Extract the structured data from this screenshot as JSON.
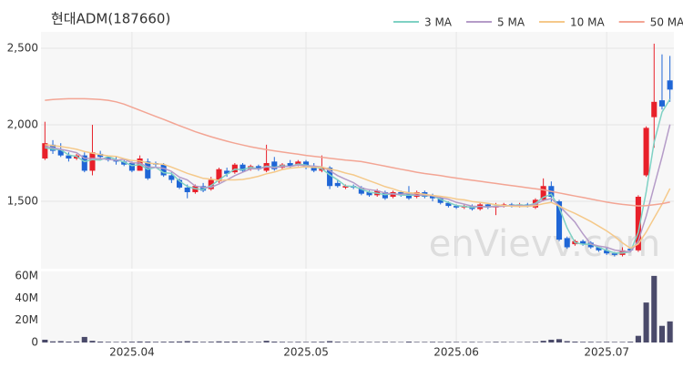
{
  "chart_data": {
    "type": "candlestick",
    "title": "현대ADM(187660)",
    "watermark": "enVievv.com",
    "categories": [
      null,
      null,
      null,
      null,
      null,
      null,
      null,
      null,
      null,
      null,
      null,
      "2025.04",
      null,
      null,
      null,
      null,
      null,
      null,
      null,
      null,
      null,
      null,
      null,
      null,
      null,
      null,
      null,
      null,
      null,
      null,
      null,
      null,
      null,
      "2025.05",
      null,
      null,
      null,
      null,
      null,
      null,
      null,
      null,
      null,
      null,
      null,
      null,
      null,
      null,
      null,
      null,
      null,
      null,
      "2025.06",
      null,
      null,
      null,
      null,
      null,
      null,
      null,
      null,
      null,
      null,
      null,
      null,
      null,
      null,
      null,
      null,
      null,
      null,
      "2025.07",
      null,
      null,
      null,
      null,
      null,
      null,
      null,
      null
    ],
    "open": [
      1780,
      1870,
      1840,
      1800,
      1780,
      1800,
      1700,
      1810,
      1790,
      1770,
      1760,
      1750,
      1700,
      1760,
      1750,
      1740,
      1670,
      1640,
      1590,
      1560,
      1600,
      1580,
      1630,
      1700,
      1690,
      1740,
      1710,
      1730,
      1700,
      1760,
      1720,
      1750,
      1740,
      1760,
      1730,
      1700,
      1720,
      1620,
      1590,
      1600,
      1590,
      1560,
      1540,
      1560,
      1530,
      1560,
      1560,
      1530,
      1560,
      1540,
      1520,
      1490,
      1470,
      1460,
      1470,
      1450,
      1480,
      1460,
      1470,
      1480,
      1470,
      1480,
      1460,
      1510,
      1600,
      1500,
      1260,
      1220,
      1240,
      1230,
      1200,
      1180,
      1160,
      1150,
      1190,
      1180,
      1670,
      2050,
      2160,
      2290
    ],
    "high": [
      2020,
      1900,
      1880,
      1820,
      1810,
      1820,
      2000,
      1830,
      1800,
      1790,
      1770,
      1760,
      1800,
      1780,
      1760,
      1750,
      1690,
      1650,
      1610,
      1610,
      1620,
      1660,
      1720,
      1720,
      1750,
      1750,
      1740,
      1740,
      1870,
      1790,
      1750,
      1770,
      1770,
      1770,
      1750,
      1800,
      1730,
      1640,
      1610,
      1610,
      1600,
      1570,
      1580,
      1570,
      1570,
      1570,
      1600,
      1570,
      1570,
      1550,
      1530,
      1500,
      1480,
      1480,
      1480,
      1490,
      1490,
      1490,
      1490,
      1490,
      1490,
      1490,
      1520,
      1650,
      1630,
      1510,
      1270,
      1250,
      1250,
      1240,
      1210,
      1200,
      1170,
      1200,
      1200,
      1540,
      1990,
      2530,
      2460,
      2450
    ],
    "low": [
      1770,
      1810,
      1790,
      1760,
      1770,
      1690,
      1670,
      1770,
      1760,
      1740,
      1730,
      1690,
      1700,
      1640,
      1720,
      1660,
      1620,
      1580,
      1520,
      1550,
      1560,
      1570,
      1620,
      1660,
      1680,
      1690,
      1700,
      1700,
      1690,
      1700,
      1710,
      1720,
      1730,
      1710,
      1690,
      1690,
      1580,
      1590,
      1580,
      1580,
      1540,
      1530,
      1530,
      1510,
      1520,
      1530,
      1510,
      1520,
      1520,
      1500,
      1480,
      1460,
      1450,
      1450,
      1440,
      1440,
      1450,
      1410,
      1460,
      1460,
      1460,
      1460,
      1450,
      1500,
      1490,
      1240,
      1190,
      1210,
      1210,
      1190,
      1170,
      1150,
      1140,
      1140,
      1170,
      1170,
      1660,
      1850,
      2100,
      2150
    ],
    "close": [
      1880,
      1830,
      1800,
      1780,
      1800,
      1700,
      1820,
      1790,
      1770,
      1760,
      1740,
      1700,
      1780,
      1650,
      1740,
      1670,
      1640,
      1590,
      1560,
      1600,
      1570,
      1640,
      1710,
      1680,
      1740,
      1700,
      1730,
      1710,
      1750,
      1710,
      1740,
      1730,
      1760,
      1720,
      1700,
      1720,
      1600,
      1600,
      1600,
      1590,
      1550,
      1540,
      1570,
      1520,
      1560,
      1540,
      1520,
      1560,
      1530,
      1520,
      1490,
      1470,
      1460,
      1470,
      1450,
      1480,
      1460,
      1470,
      1480,
      1470,
      1480,
      1470,
      1510,
      1600,
      1530,
      1250,
      1200,
      1240,
      1220,
      1200,
      1180,
      1160,
      1150,
      1180,
      1180,
      1530,
      1980,
      2150,
      2120,
      2230
    ],
    "up_color": "#e8202a",
    "down_color": "#1f66d6",
    "series": [
      {
        "name": "3 MA",
        "color": "#7fd1c4",
        "values": [
          1850,
          1840,
          1837,
          1803,
          1793,
          1760,
          1773,
          1770,
          1793,
          1773,
          1757,
          1733,
          1740,
          1710,
          1723,
          1687,
          1683,
          1633,
          1597,
          1583,
          1577,
          1603,
          1640,
          1677,
          1710,
          1707,
          1723,
          1713,
          1730,
          1723,
          1733,
          1727,
          1743,
          1737,
          1727,
          1713,
          1673,
          1640,
          1600,
          1597,
          1580,
          1560,
          1553,
          1543,
          1550,
          1540,
          1540,
          1540,
          1537,
          1537,
          1513,
          1493,
          1473,
          1467,
          1460,
          1467,
          1463,
          1470,
          1470,
          1473,
          1477,
          1473,
          1487,
          1527,
          1547,
          1460,
          1327,
          1230,
          1220,
          1220,
          1200,
          1180,
          1163,
          1163,
          1170,
          1297,
          1563,
          1887,
          2083,
          2167
        ]
      },
      {
        "name": "5 MA",
        "color": "#b59cc8",
        "values": [
          1860,
          1850,
          1840,
          1830,
          1818,
          1782,
          1780,
          1778,
          1776,
          1768,
          1776,
          1752,
          1750,
          1724,
          1722,
          1716,
          1696,
          1658,
          1640,
          1600,
          1592,
          1592,
          1614,
          1640,
          1668,
          1690,
          1712,
          1712,
          1726,
          1720,
          1728,
          1728,
          1738,
          1732,
          1730,
          1726,
          1700,
          1668,
          1644,
          1622,
          1588,
          1576,
          1570,
          1554,
          1548,
          1546,
          1552,
          1540,
          1542,
          1536,
          1524,
          1514,
          1494,
          1482,
          1468,
          1466,
          1464,
          1466,
          1468,
          1472,
          1472,
          1470,
          1482,
          1506,
          1518,
          1472,
          1418,
          1364,
          1288,
          1222,
          1208,
          1200,
          1182,
          1174,
          1170,
          1240,
          1404,
          1598,
          1792,
          2002
        ]
      },
      {
        "name": "10 MA",
        "color": "#f5c98a",
        "values": [
          1870,
          1865,
          1858,
          1850,
          1840,
          1825,
          1815,
          1805,
          1797,
          1793,
          1779,
          1766,
          1764,
          1751,
          1745,
          1742,
          1724,
          1704,
          1683,
          1667,
          1650,
          1644,
          1637,
          1640,
          1640,
          1643,
          1652,
          1664,
          1680,
          1691,
          1708,
          1717,
          1722,
          1726,
          1722,
          1724,
          1711,
          1700,
          1685,
          1673,
          1654,
          1635,
          1616,
          1596,
          1582,
          1564,
          1556,
          1553,
          1546,
          1539,
          1533,
          1526,
          1515,
          1510,
          1499,
          1493,
          1487,
          1478,
          1473,
          1468,
          1467,
          1467,
          1472,
          1485,
          1493,
          1470,
          1444,
          1421,
          1395,
          1368,
          1338,
          1307,
          1271,
          1229,
          1194,
          1222,
          1300,
          1391,
          1481,
          1584
        ]
      },
      {
        "name": "50 MA",
        "color": "#f3a594",
        "values": [
          2160,
          2165,
          2168,
          2170,
          2170,
          2170,
          2168,
          2165,
          2160,
          2150,
          2135,
          2115,
          2095,
          2075,
          2055,
          2035,
          2015,
          1995,
          1975,
          1955,
          1938,
          1922,
          1907,
          1893,
          1880,
          1868,
          1857,
          1847,
          1838,
          1830,
          1822,
          1815,
          1808,
          1800,
          1794,
          1788,
          1782,
          1776,
          1770,
          1765,
          1760,
          1750,
          1740,
          1730,
          1720,
          1710,
          1700,
          1690,
          1682,
          1675,
          1668,
          1660,
          1652,
          1645,
          1638,
          1631,
          1624,
          1617,
          1610,
          1603,
          1596,
          1589,
          1582,
          1575,
          1565,
          1555,
          1545,
          1535,
          1525,
          1515,
          1505,
          1495,
          1487,
          1480,
          1475,
          1470,
          1472,
          1478,
          1485,
          1495
        ]
      }
    ],
    "ylim": [
      1060,
      2607
    ],
    "yticks": [
      {
        "value": 1500,
        "label": "1,500"
      },
      {
        "value": 2000,
        "label": "2,000"
      },
      {
        "value": 2500,
        "label": "2,500"
      }
    ],
    "grid": true,
    "legend": "top-right",
    "volume": {
      "color": "#4a4a6a",
      "ylim": [
        0,
        64
      ],
      "yticks": [
        0,
        {
          "value": 20,
          "label": "20M"
        },
        {
          "value": 40,
          "label": "40M"
        },
        {
          "value": 60,
          "label": "60M"
        }
      ],
      "values": [
        2.5,
        1.0,
        1.2,
        0.8,
        1.0,
        5.0,
        1.5,
        0.8,
        0.6,
        0.5,
        0.6,
        0.7,
        0.9,
        0.8,
        0.6,
        0.7,
        0.8,
        0.9,
        1.2,
        0.8,
        0.6,
        0.7,
        1.0,
        0.8,
        0.9,
        0.7,
        0.6,
        0.6,
        1.5,
        0.8,
        0.6,
        0.5,
        0.6,
        0.5,
        0.6,
        0.7,
        1.2,
        0.7,
        0.5,
        0.5,
        0.6,
        0.5,
        0.5,
        0.6,
        0.5,
        0.4,
        0.8,
        0.5,
        0.5,
        0.6,
        0.5,
        0.6,
        0.5,
        0.4,
        0.5,
        0.4,
        0.4,
        0.6,
        0.5,
        0.4,
        0.4,
        0.5,
        0.6,
        1.5,
        2.5,
        3.0,
        1.2,
        0.8,
        0.6,
        0.6,
        0.5,
        0.6,
        0.5,
        0.5,
        0.7,
        6.0,
        36,
        60,
        15,
        19
      ]
    }
  }
}
